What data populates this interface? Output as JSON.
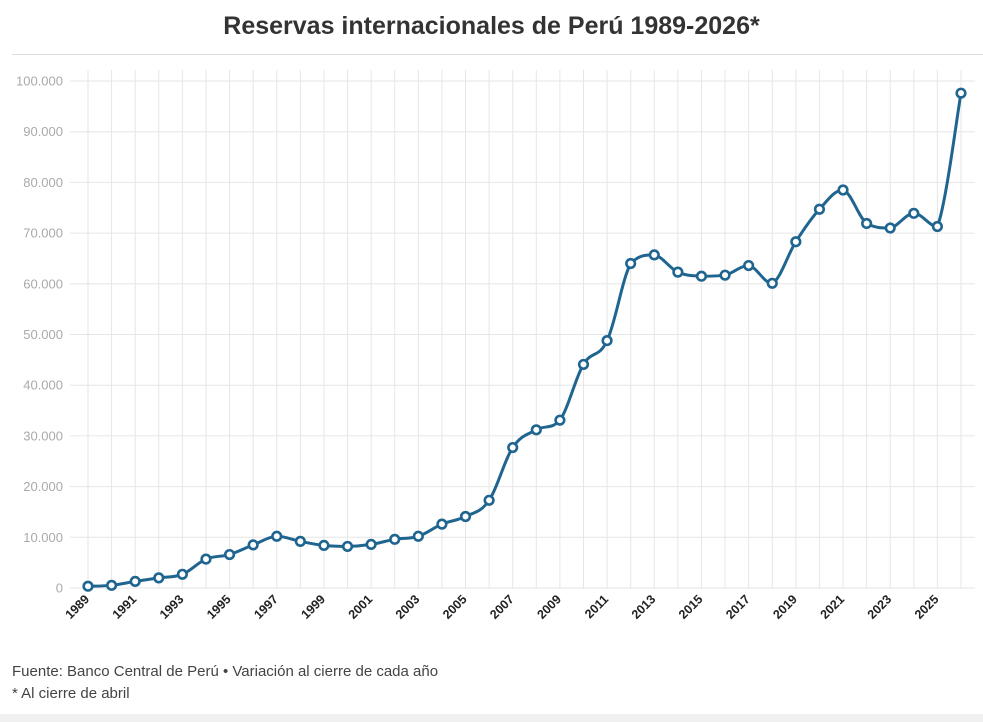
{
  "header": {
    "title": "Reservas internacionales de Perú 1989-2026*"
  },
  "footer": {
    "source": "Fuente: Banco Central de Perú • Variación al cierre de cada año",
    "note": "* Al cierre de abril"
  },
  "colors": {
    "line": "#1f6590",
    "grid": "#e6e6e6"
  },
  "chart_data": {
    "type": "line",
    "title": "Reservas internacionales de Perú 1989-2026*",
    "xlabel": "",
    "ylabel": "",
    "ylim": [
      0,
      100000
    ],
    "y_ticks": [
      0,
      10000,
      20000,
      30000,
      40000,
      50000,
      60000,
      70000,
      80000,
      90000,
      100000
    ],
    "y_tick_labels": [
      "0",
      "10.000",
      "20.000",
      "30.000",
      "40.000",
      "50.000",
      "60.000",
      "70.000",
      "80.000",
      "90.000",
      "100.000"
    ],
    "x_tick_labels": [
      "1989",
      "1991",
      "1993",
      "1995",
      "1997",
      "1999",
      "2001",
      "2003",
      "2005",
      "2007",
      "2009",
      "2011",
      "2013",
      "2015",
      "2017",
      "2019",
      "2021",
      "2023",
      "2025"
    ],
    "grid": true,
    "legend": "none",
    "markers": true,
    "x": [
      1989,
      1990,
      1991,
      1992,
      1993,
      1994,
      1995,
      1996,
      1997,
      1998,
      1999,
      2000,
      2001,
      2002,
      2003,
      2004,
      2005,
      2006,
      2007,
      2008,
      2009,
      2010,
      2011,
      2012,
      2013,
      2014,
      2015,
      2016,
      2017,
      2018,
      2019,
      2020,
      2021,
      2022,
      2023,
      2024,
      2025,
      2026
    ],
    "y": [
      350,
      530,
      1300,
      2000,
      2700,
      5700,
      6600,
      8500,
      10200,
      9200,
      8400,
      8200,
      8600,
      9600,
      10200,
      12600,
      14100,
      17300,
      27700,
      31200,
      33100,
      44100,
      48800,
      64000,
      65700,
      62300,
      61500,
      61700,
      63600,
      60100,
      68300,
      74700,
      78500,
      71900,
      71000,
      73900,
      71300,
      97600
    ]
  }
}
